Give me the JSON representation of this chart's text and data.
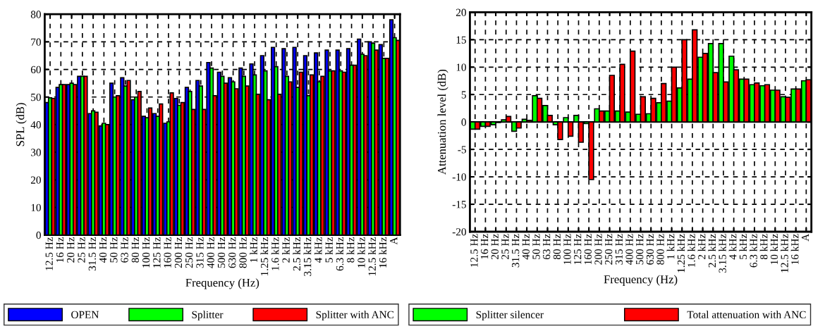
{
  "chart_data": [
    {
      "type": "bar",
      "xlabel": "Frequency (Hz)",
      "ylabel": "SPL (dB)",
      "categories": [
        "12.5 Hz",
        "16 Hz",
        "20 Hz",
        "25 Hz",
        "31.5 Hz",
        "40 Hz",
        "50 Hz",
        "63 Hz",
        "80 Hz",
        "100 Hz",
        "125 Hz",
        "160 Hz",
        "200 Hz",
        "250 Hz",
        "315 Hz",
        "400 Hz",
        "500 Hz",
        "630 Hz",
        "800 Hz",
        "1 kHz",
        "1.25 kHz",
        "1.6 kHz",
        "2 kHz",
        "2.5 kHz",
        "3.15 kHz",
        "4 kHz",
        "5 kHz",
        "6.3 kHz",
        "8 kHz",
        "10 kHz",
        "12.5 kHz",
        "16 kHz",
        "A"
      ],
      "series": [
        {
          "name": "OPEN",
          "color": "#0000ff",
          "values": [
            48,
            53.5,
            54.5,
            57.5,
            44,
            39.5,
            55,
            57,
            49,
            43,
            44,
            40.5,
            49.5,
            53.5,
            56,
            62.5,
            59,
            57,
            60.5,
            62,
            65,
            68,
            67.5,
            68,
            65,
            66,
            67,
            67,
            67.5,
            71,
            70,
            69,
            78
          ]
        },
        {
          "name": "Splitter",
          "color": "#00ff00",
          "values": [
            49.7,
            54.5,
            55,
            57.5,
            45,
            40.5,
            50,
            54,
            50,
            42.5,
            43,
            41,
            47,
            52,
            54,
            60.5,
            57.5,
            55.5,
            57.5,
            58,
            59.5,
            61,
            57.5,
            53.5,
            50.5,
            55.5,
            59.5,
            59.5,
            61.5,
            65.5,
            69.5,
            64,
            71.5
          ]
        },
        {
          "name": "Splitter with ANC",
          "color": "#ff0000",
          "values": [
            49.5,
            54.5,
            54.5,
            57.5,
            44.5,
            40,
            50.5,
            56,
            52,
            46,
            47.5,
            51.5,
            48,
            45.5,
            45.5,
            50.5,
            55,
            53,
            54,
            51,
            49,
            51,
            55.5,
            59,
            58,
            57.5,
            59.5,
            59,
            61.5,
            65,
            67,
            64,
            70.5
          ]
        }
      ],
      "ylim": [
        0,
        80
      ],
      "yticks": [
        0,
        10,
        20,
        30,
        40,
        50,
        60,
        70,
        80
      ],
      "grid": true,
      "legend": "bottom"
    },
    {
      "type": "bar",
      "xlabel": "Frequency (Hz)",
      "ylabel": "Attenuation level (dB)",
      "categories": [
        "12.5 Hz",
        "16 Hz",
        "20 Hz",
        "25 Hz",
        "31.5 Hz",
        "40 Hz",
        "50 Hz",
        "63 Hz",
        "80 Hz",
        "100 Hz",
        "125 Hz",
        "160 Hz",
        "200 Hz",
        "250 Hz",
        "315 Hz",
        "400 Hz",
        "500 Hz",
        "630 Hz",
        "800 Hz",
        "1 kHz",
        "1.25 kHz",
        "1.6 kHz",
        "2 kHz",
        "2.5 kHz",
        "3.15 kHz",
        "4 kHz",
        "5 kHz",
        "6.3 kHz",
        "8 kHz",
        "10 kHz",
        "12.5 kHz",
        "16 kHz",
        "A"
      ],
      "series": [
        {
          "name": "Splitter silencer",
          "color": "#00ff00",
          "values": [
            -1.3,
            -0.8,
            -0.5,
            0.4,
            -1.7,
            0.5,
            4.8,
            3,
            -0.5,
            0.8,
            1.2,
            -0.3,
            2.4,
            2,
            2,
            1.8,
            1.4,
            1.5,
            3.5,
            3.8,
            6.2,
            7.8,
            11.8,
            14.3,
            14.3,
            12,
            7.8,
            6.8,
            6.6,
            5.8,
            4.6,
            6,
            7.5
          ]
        },
        {
          "name": "Total attenuation with ANC",
          "color": "#ff0000",
          "values": [
            -1.3,
            -0.8,
            -0.1,
            1,
            -1.1,
            0.3,
            4.3,
            1.2,
            -3.2,
            -2.6,
            -3.7,
            -10.5,
            2,
            8.5,
            10.5,
            12.9,
            4.6,
            4.3,
            7,
            10,
            15,
            16.8,
            12.5,
            9,
            7.3,
            9.5,
            7.8,
            7.1,
            6.8,
            5.8,
            4.5,
            6,
            7.7
          ]
        }
      ],
      "ylim": [
        -20,
        20
      ],
      "yticks": [
        -20,
        -15,
        -10,
        -5,
        0,
        5,
        10,
        15,
        20
      ],
      "grid": true,
      "legend": "bottom"
    }
  ]
}
